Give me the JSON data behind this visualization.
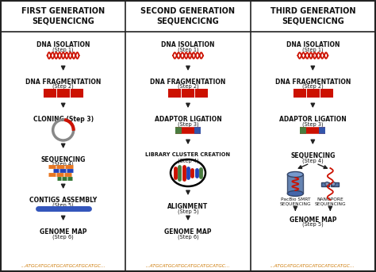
{
  "bg_color": "#ffffff",
  "border_color": "#222222",
  "col_titles": [
    "FIRST GENERATION\nSEQUENCICNG",
    "SECOND GENERATION\nSEQUENCICNG",
    "THIRD GENERATION\nSEQUENCICNG"
  ],
  "dna_color": "#cc1100",
  "frag_color": "#cc1100",
  "text_color": "#111111",
  "footer_color": "#cc7700",
  "footer_text": "...ATGCATGCATGCATGCATGCATGC...",
  "assembly_color": "#3355bb",
  "seq_colors": [
    "#e87722",
    "#2244bb",
    "#e87722",
    "#337733"
  ],
  "adaptor_green": "#4a7c3f",
  "adaptor_blue": "#3355aa",
  "cluster_colors": [
    "#cc1100",
    "#4a7c3f",
    "#cc1100",
    "#2244bb",
    "#cc1100",
    "#2244bb",
    "#4a7c3f"
  ],
  "cylinder_color": "#5577aa",
  "pacbio_label": "PacBio SMRT\nSEQUENCING",
  "nanopore_label": "NANOPORE\nSEQUENCING"
}
